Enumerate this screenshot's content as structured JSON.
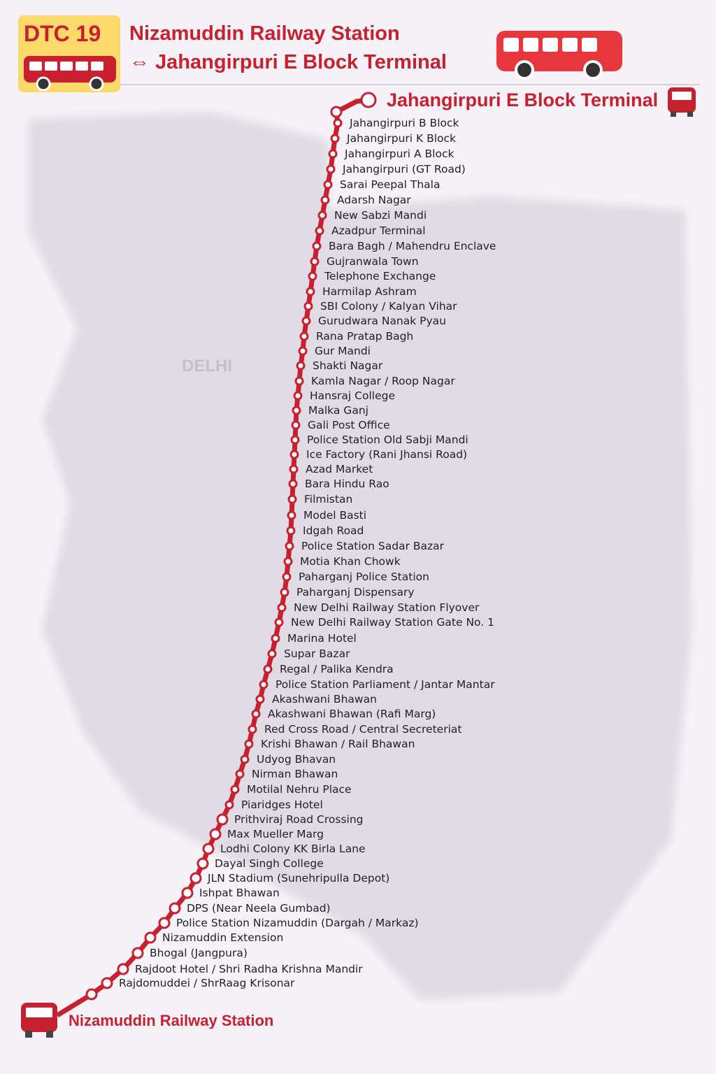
{
  "route_number": "DTC 19",
  "title_line1": "Nizamuddin Railway Station",
  "title_line2": "⇔ Jahangirpuri E Block Terminal",
  "start_terminal": "Jahangirpuri E Block Terminal",
  "end_terminal": "Nizamuddin Railway Station",
  "map_label": "DELHI",
  "colors": {
    "route": "#c8202e",
    "badge": "#fbd96a",
    "bus": "#e8363f"
  },
  "stops": [
    "Jahangirpuri B Block",
    "Jahangirpuri K Block",
    "Jahangirpuri A Block",
    "Jahangirpuri (GT Road)",
    "Sarai Peepal Thala",
    "Adarsh Nagar",
    "New Sabzi Mandi",
    "Azadpur Terminal",
    "Bara Bagh / Mahendru Enclave",
    "Gujranwala Town",
    "Telephone Exchange",
    "Harmilap Ashram",
    "SBI Colony / Kalyan Vihar",
    "Gurudwara Nanak Pyau",
    "Rana Pratap Bagh",
    "Gur Mandi",
    "Shakti Nagar",
    "Kamla Nagar / Roop Nagar",
    "Hansraj College",
    "Malka Ganj",
    "Gali Post Office",
    "Police Station Old Sabji Mandi",
    "Ice Factory (Rani Jhansi Road)",
    "Azad Market",
    "Bara Hindu Rao",
    "Filmistan",
    "Model Basti",
    "Idgah Road",
    "Police Station Sadar Bazar",
    "Motia Khan Chowk",
    "Paharganj Police Station",
    "Paharganj Dispensary",
    "New Delhi Railway Station Flyover",
    "New Delhi Railway Station Gate No. 1",
    "Marina Hotel",
    "Supar Bazar",
    "Regal / Palika Kendra",
    "Police Station Parliament / Jantar Mantar",
    "Akashwani Bhawan",
    "Akashwani Bhawan (Rafi Marg)",
    "Red Cross Road / Central Secreteriat",
    "Krishi Bhawan / Rail Bhawan",
    "Udyog Bhavan",
    "Nirman Bhawan",
    "Motilal Nehru Place",
    "Piaridges Hotel",
    "Prithviraj Road Crossing",
    "Max Mueller Marg",
    "Lodhi Colony KK Birla Lane",
    "Dayal Singh College",
    "JLN Stadium (Sunehripulla Depot)",
    "Ishpat Bhawan",
    "DPS (Near Neela Gumbad)",
    "Police Station Nizamuddin (Dargah / Markaz)",
    "Nizamuddin Extension",
    "Bhogal (Jangpura)",
    "Rajdoot Hotel / Shri Radha Krishna Mandir",
    "Rajdomuddei / ShrRaag Krisonar"
  ]
}
